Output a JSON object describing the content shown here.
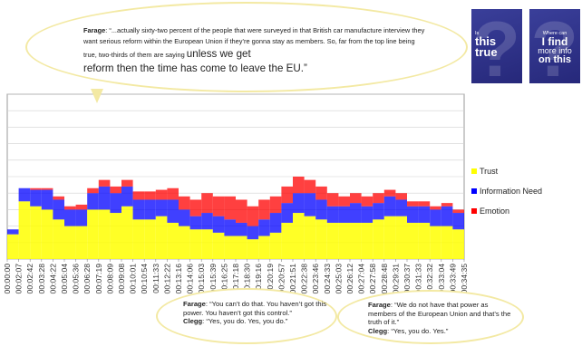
{
  "quote_top": {
    "speaker": "Farage",
    "text_small": ": “...actually sixty-two percent of the people that were surveyed in that British car manufacture interview they want serious reform within the European Union if they’re gonna stay as members. So, far from the top line being true, two-thirds of them are saying",
    "text_big_1": "unless we get",
    "text_big_2": "reform then the time has come to leave the EU.”"
  },
  "quote_bottom_left": {
    "speaker1": "Farage",
    "line1": ": “You can’t do that. You haven’t got this power. You haven’t got this control.”",
    "speaker2": "Clegg",
    "line2": ": “Yes, you do. Yes, you do.”"
  },
  "quote_bottom_right": {
    "speaker1": "Farage",
    "line1": ": “We do not have that power as members of the European Union and that’s the truth of it.”",
    "speaker2": "Clegg",
    "line2": ": “Yes, you do. Yes.”"
  },
  "tiles": [
    {
      "small": "Is",
      "lines": [
        "this",
        "true"
      ]
    },
    {
      "small": "Where can",
      "lines": [
        "I find",
        "more info",
        "on this"
      ]
    }
  ],
  "colors": {
    "trust": "#ffff00",
    "information_need": "#0000ff",
    "emotion": "#ff0000",
    "bubble_border": "#f3e9a3",
    "tile": "#2e3188"
  },
  "chart_data": {
    "type": "bar",
    "legend": [
      "Trust",
      "Information Need",
      "Emotion"
    ],
    "legend_position": "right",
    "x_tick_labels": [
      "00:00:00",
      "00:02:07",
      "00:02:42",
      "00:03:28",
      "00:04:22",
      "00:05:04",
      "00:05:36",
      "00:06:28",
      "00:07:19",
      "00:08:09",
      "00:09:08",
      "00:10:01",
      "00:10:54",
      "00:11:33",
      "00:12:22",
      "00:13:16",
      "00:14:06",
      "00:15:03",
      "00:15:39",
      "00:16:25",
      "00:17:18",
      "00:18:30",
      "00:19:16",
      "00:20:19",
      "00:20:57",
      "00:21:51",
      "00:22:38",
      "00:23:46",
      "00:24:33",
      "00:25:03",
      "00:26:12",
      "00:27:04",
      "00:27:58",
      "00:28:48",
      "00:29:31",
      "00:30:37",
      "00:31:33",
      "00:32:32",
      "00:33:04",
      "00:33:49",
      "00:34:35"
    ],
    "ylim": [
      0,
      1
    ],
    "grid": true,
    "series": [
      {
        "name": "Trust",
        "values": [
          0.15,
          0.35,
          0.32,
          0.3,
          0.24,
          0.2,
          0.2,
          0.3,
          0.3,
          0.28,
          0.32,
          0.24,
          0.24,
          0.26,
          0.22,
          0.2,
          0.18,
          0.18,
          0.16,
          0.14,
          0.14,
          0.12,
          0.14,
          0.16,
          0.22,
          0.28,
          0.26,
          0.24,
          0.22,
          0.22,
          0.22,
          0.22,
          0.24,
          0.26,
          0.26,
          0.22,
          0.22,
          0.2,
          0.2,
          0.18,
          0.18
        ]
      },
      {
        "name": "Information Need",
        "values": [
          0.03,
          0.08,
          0.1,
          0.12,
          0.12,
          0.1,
          0.1,
          0.1,
          0.14,
          0.12,
          0.12,
          0.12,
          0.12,
          0.1,
          0.14,
          0.1,
          0.08,
          0.1,
          0.1,
          0.1,
          0.08,
          0.08,
          0.1,
          0.12,
          0.12,
          0.12,
          0.14,
          0.12,
          0.1,
          0.1,
          0.12,
          0.1,
          0.1,
          0.12,
          0.1,
          0.1,
          0.1,
          0.1,
          0.12,
          0.1,
          0.1
        ]
      },
      {
        "name": "Emotion",
        "values": [
          0,
          0,
          0.01,
          0.01,
          0.02,
          0.02,
          0.03,
          0.03,
          0.04,
          0.04,
          0.04,
          0.05,
          0.05,
          0.06,
          0.07,
          0.08,
          0.1,
          0.12,
          0.12,
          0.14,
          0.14,
          0.12,
          0.12,
          0.1,
          0.1,
          0.1,
          0.08,
          0.08,
          0.08,
          0.06,
          0.06,
          0.06,
          0.06,
          0.04,
          0.04,
          0.03,
          0.03,
          0.02,
          0.02,
          0.02,
          0.01
        ]
      }
    ]
  }
}
